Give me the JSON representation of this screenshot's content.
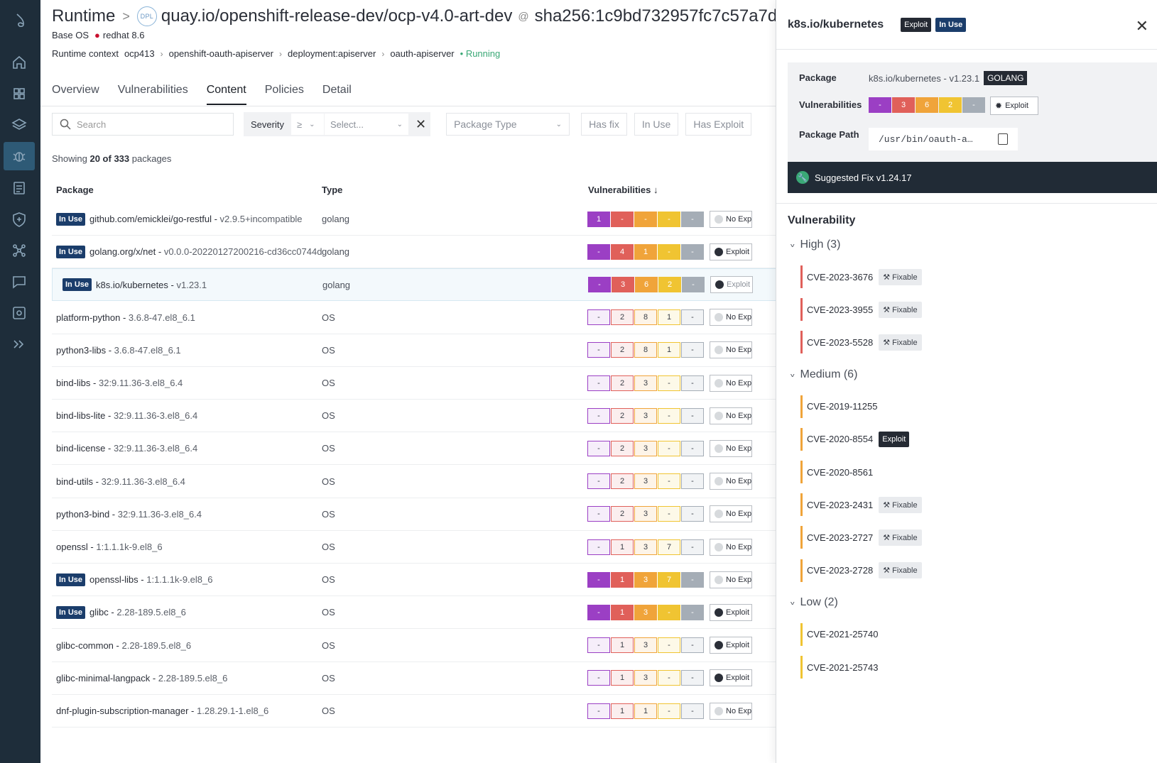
{
  "header": {
    "section": "Runtime",
    "resource_badge": "DPL",
    "image": "quay.io/openshift-release-dev/ocp-v4.0-art-dev",
    "at": "@",
    "digest": "sha256:1c9bd732957fc7c57a7d",
    "base_os_label": "Base OS",
    "base_os": "redhat 8.6",
    "context_label": "Runtime context",
    "context_path": [
      "ocp413",
      "openshift-oauth-apiserver",
      "deployment:apiserver",
      "oauth-apiserver"
    ],
    "status": "Running"
  },
  "tabs": [
    "Overview",
    "Vulnerabilities",
    "Content",
    "Policies",
    "Detail"
  ],
  "filters": {
    "search_placeholder": "Search",
    "severity_label": "Severity",
    "operator": "≥",
    "select_placeholder": "Select...",
    "package_type_placeholder": "Package Type",
    "has_fix": "Has fix",
    "in_use": "In Use",
    "has_exploit": "Has Exploit"
  },
  "summary": {
    "prefix": "Showing ",
    "shown": "20 of 333",
    "suffix": " packages"
  },
  "table": {
    "headers": [
      "Package",
      "Type",
      "Vulnerabilities ↓"
    ],
    "rows": [
      {
        "in_use": true,
        "name": "github.com/emicklei/go-restful",
        "version": "v2.9.5+incompatible",
        "type": "golang",
        "vulns": [
          "1",
          "-",
          "-",
          "-",
          "-"
        ],
        "exploit": "No Exploit"
      },
      {
        "in_use": true,
        "name": "golang.org/x/net",
        "version": "v0.0.0-20220127200216-cd36cc0744d",
        "type": "golang",
        "vulns": [
          "-",
          "4",
          "1",
          "-",
          "-"
        ],
        "exploit": "Exploit"
      },
      {
        "in_use": true,
        "name": "k8s.io/kubernetes",
        "version": "v1.23.1",
        "type": "golang",
        "vulns": [
          "-",
          "3",
          "6",
          "2",
          "-"
        ],
        "exploit": "Exploit",
        "selected": true
      },
      {
        "in_use": false,
        "name": "platform-python",
        "version": "3.6.8-47.el8_6.1",
        "type": "OS",
        "vulns": [
          "-",
          "2",
          "8",
          "1",
          "-"
        ],
        "exploit": "No Exploit"
      },
      {
        "in_use": false,
        "name": "python3-libs",
        "version": "3.6.8-47.el8_6.1",
        "type": "OS",
        "vulns": [
          "-",
          "2",
          "8",
          "1",
          "-"
        ],
        "exploit": "No Exploit"
      },
      {
        "in_use": false,
        "name": "bind-libs",
        "version": "32:9.11.36-3.el8_6.4",
        "type": "OS",
        "vulns": [
          "-",
          "2",
          "3",
          "-",
          "-"
        ],
        "exploit": "No Exploit"
      },
      {
        "in_use": false,
        "name": "bind-libs-lite",
        "version": "32:9.11.36-3.el8_6.4",
        "type": "OS",
        "vulns": [
          "-",
          "2",
          "3",
          "-",
          "-"
        ],
        "exploit": "No Exploit"
      },
      {
        "in_use": false,
        "name": "bind-license",
        "version": "32:9.11.36-3.el8_6.4",
        "type": "OS",
        "vulns": [
          "-",
          "2",
          "3",
          "-",
          "-"
        ],
        "exploit": "No Exploit"
      },
      {
        "in_use": false,
        "name": "bind-utils",
        "version": "32:9.11.36-3.el8_6.4",
        "type": "OS",
        "vulns": [
          "-",
          "2",
          "3",
          "-",
          "-"
        ],
        "exploit": "No Exploit"
      },
      {
        "in_use": false,
        "name": "python3-bind",
        "version": "32:9.11.36-3.el8_6.4",
        "type": "OS",
        "vulns": [
          "-",
          "2",
          "3",
          "-",
          "-"
        ],
        "exploit": "No Exploit"
      },
      {
        "in_use": false,
        "name": "openssl",
        "version": "1:1.1.1k-9.el8_6",
        "type": "OS",
        "vulns": [
          "-",
          "1",
          "3",
          "7",
          "-"
        ],
        "exploit": "No Exploit"
      },
      {
        "in_use": true,
        "name": "openssl-libs",
        "version": "1:1.1.1k-9.el8_6",
        "type": "OS",
        "vulns": [
          "-",
          "1",
          "3",
          "7",
          "-"
        ],
        "exploit": "No Exploit"
      },
      {
        "in_use": true,
        "name": "glibc",
        "version": "2.28-189.5.el8_6",
        "type": "OS",
        "vulns": [
          "-",
          "1",
          "3",
          "-",
          "-"
        ],
        "exploit": "Exploit"
      },
      {
        "in_use": false,
        "name": "glibc-common",
        "version": "2.28-189.5.el8_6",
        "type": "OS",
        "vulns": [
          "-",
          "1",
          "3",
          "-",
          "-"
        ],
        "exploit": "Exploit"
      },
      {
        "in_use": false,
        "name": "glibc-minimal-langpack",
        "version": "2.28-189.5.el8_6",
        "type": "OS",
        "vulns": [
          "-",
          "1",
          "3",
          "-",
          "-"
        ],
        "exploit": "Exploit"
      },
      {
        "in_use": false,
        "name": "dnf-plugin-subscription-manager",
        "version": "1.28.29.1-1.el8_6",
        "type": "OS",
        "vulns": [
          "-",
          "1",
          "1",
          "-",
          "-"
        ],
        "exploit": "No Exploit"
      }
    ]
  },
  "in_use_badge": "In Use",
  "severity_colors": {
    "critical": "#9b3fc4",
    "high": "#e0605a",
    "medium": "#f0a43a",
    "low": "#f0c432",
    "negligible": "#a5adb6"
  },
  "panel": {
    "title": "k8s.io/kubernetes",
    "badges": [
      "Exploit",
      "In Use"
    ],
    "package_label": "Package",
    "package_value": "k8s.io/kubernetes - v1.23.1",
    "package_type": "GOLANG",
    "vulns_label": "Vulnerabilities",
    "vulns": [
      "-",
      "3",
      "6",
      "2",
      "-"
    ],
    "exploit_button": "Exploit",
    "path_label": "Package Path",
    "path": "/usr/bin/oauth-a…",
    "suggested_fix": "Suggested Fix v1.24.17",
    "vuln_section": "Vulnerability",
    "groups": [
      {
        "label": "High (3)",
        "sev": "high",
        "items": [
          {
            "id": "CVE-2023-3676",
            "tag": "Fixable"
          },
          {
            "id": "CVE-2023-3955",
            "tag": "Fixable"
          },
          {
            "id": "CVE-2023-5528",
            "tag": "Fixable"
          }
        ]
      },
      {
        "label": "Medium (6)",
        "sev": "medium",
        "items": [
          {
            "id": "CVE-2019-11255",
            "tag": ""
          },
          {
            "id": "CVE-2020-8554",
            "tag": "Exploit"
          },
          {
            "id": "CVE-2020-8561",
            "tag": ""
          },
          {
            "id": "CVE-2023-2431",
            "tag": "Fixable"
          },
          {
            "id": "CVE-2023-2727",
            "tag": "Fixable"
          },
          {
            "id": "CVE-2023-2728",
            "tag": "Fixable"
          }
        ]
      },
      {
        "label": "Low (2)",
        "sev": "low",
        "items": [
          {
            "id": "CVE-2021-25740",
            "tag": ""
          },
          {
            "id": "CVE-2021-25743",
            "tag": ""
          }
        ]
      }
    ]
  },
  "nav_icons": [
    "logo-icon",
    "home-icon",
    "dashboard-icon",
    "layers-icon",
    "bug-icon",
    "reports-icon",
    "shield-icon",
    "network-icon",
    "chat-icon",
    "scan-icon",
    "expand-icon"
  ]
}
